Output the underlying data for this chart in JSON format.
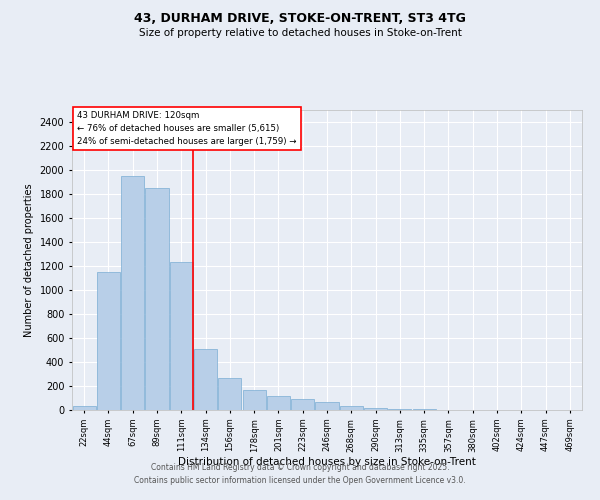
{
  "title1": "43, DURHAM DRIVE, STOKE-ON-TRENT, ST3 4TG",
  "title2": "Size of property relative to detached houses in Stoke-on-Trent",
  "xlabel": "Distribution of detached houses by size in Stoke-on-Trent",
  "ylabel": "Number of detached properties",
  "bar_heights": [
    30,
    1150,
    1950,
    1850,
    1230,
    510,
    270,
    165,
    120,
    90,
    65,
    35,
    20,
    10,
    5,
    3,
    2,
    1,
    0,
    0,
    0
  ],
  "categories": [
    "22sqm",
    "44sqm",
    "67sqm",
    "89sqm",
    "111sqm",
    "134sqm",
    "156sqm",
    "178sqm",
    "201sqm",
    "223sqm",
    "246sqm",
    "268sqm",
    "290sqm",
    "313sqm",
    "335sqm",
    "357sqm",
    "380sqm",
    "402sqm",
    "424sqm",
    "447sqm",
    "469sqm"
  ],
  "bar_color": "#b8cfe8",
  "bar_edge_color": "#7aadd4",
  "bg_color": "#e8edf5",
  "grid_color": "#ffffff",
  "red_line_x": 4.5,
  "annotation_text": "43 DURHAM DRIVE: 120sqm\n← 76% of detached houses are smaller (5,615)\n24% of semi-detached houses are larger (1,759) →",
  "footer1": "Contains HM Land Registry data © Crown copyright and database right 2025.",
  "footer2": "Contains public sector information licensed under the Open Government Licence v3.0.",
  "ylim": [
    0,
    2500
  ],
  "yticks": [
    0,
    200,
    400,
    600,
    800,
    1000,
    1200,
    1400,
    1600,
    1800,
    2000,
    2200,
    2400
  ]
}
